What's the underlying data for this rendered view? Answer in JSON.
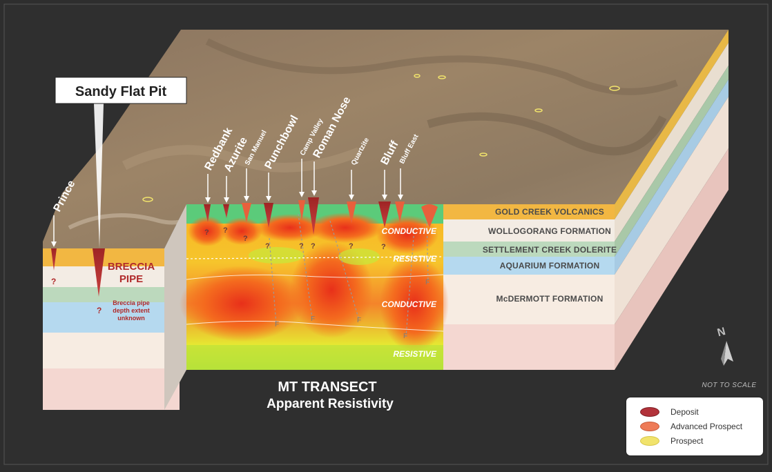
{
  "callout_title": "Sandy Flat Pit",
  "deposits": [
    {
      "label": "Prince",
      "size": 16
    },
    {
      "label": "Redbank",
      "size": 16
    },
    {
      "label": "Azurite",
      "size": 16
    },
    {
      "label": "San Manuel",
      "size": 10
    },
    {
      "label": "Punchbowl",
      "size": 16
    },
    {
      "label": "Camp Valley",
      "size": 10
    },
    {
      "label": "Roman Nose",
      "size": 16
    },
    {
      "label": "Quartzite",
      "size": 10
    },
    {
      "label": "Bluff",
      "size": 16
    },
    {
      "label": "Bluff East",
      "size": 10
    }
  ],
  "layers": [
    "GOLD CREEK VOLCANICS",
    "WOLLOGORANG FORMATION",
    "SETTLEMENT CREEK DOLERITE",
    "AQUARIUM FORMATION",
    "McDERMOTT FORMATION"
  ],
  "zones": {
    "conductive_1": "CONDUCTIVE",
    "resistive_1": "RESISTIVE",
    "conductive_2": "CONDUCTIVE",
    "resistive_2": "RESISTIVE"
  },
  "breccia": {
    "line1": "BRECCIA",
    "line2": "PIPE",
    "note1": "Breccia pipe",
    "note2": "depth extent",
    "note3": "unknown"
  },
  "question_mark": "?",
  "fault_mark": "F",
  "transect_title_1": "MT TRANSECT",
  "transect_title_2": "Apparent Resistivity",
  "north": "N",
  "not_to_scale": "NOT TO SCALE",
  "legend": [
    {
      "label": "Deposit",
      "color": "#b2323a"
    },
    {
      "label": "Advanced Prospect",
      "color": "#ee7b57"
    },
    {
      "label": "Prospect",
      "color": "#f1e36c"
    }
  ]
}
